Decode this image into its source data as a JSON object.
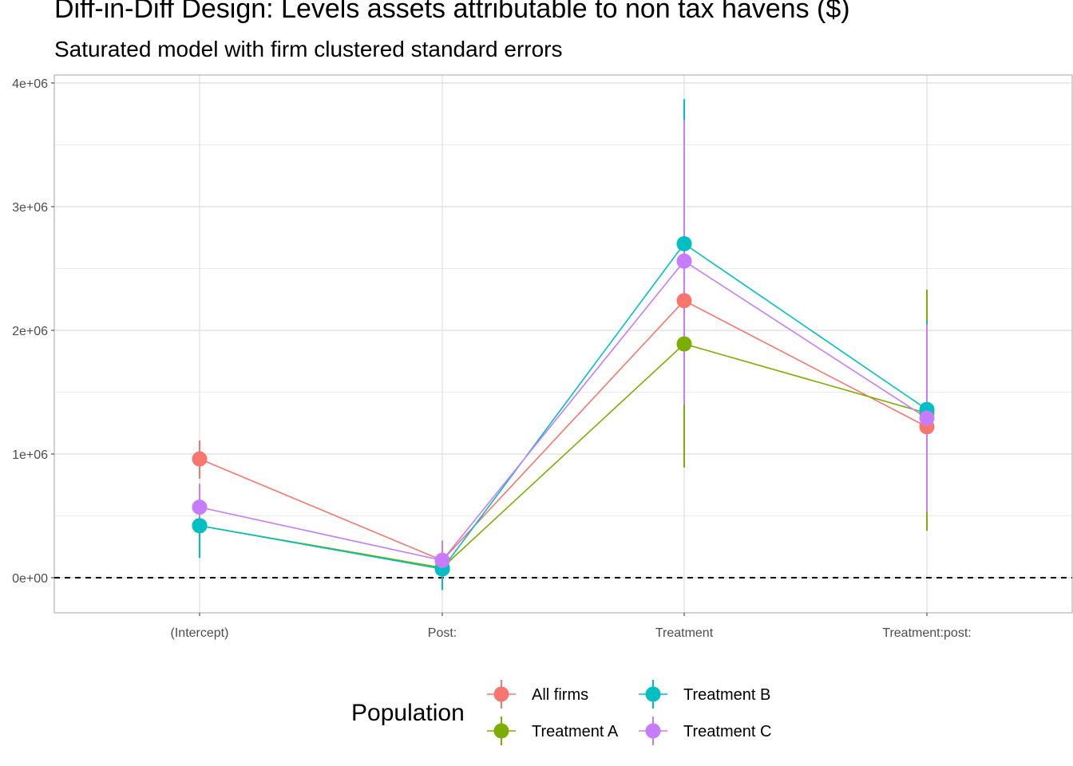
{
  "chart_data": {
    "type": "scatter",
    "title": "Diff-in-Diff Design: Levels assets attributable to non tax havens  ($)",
    "subtitle": "Saturated model with firm clustered standard errors",
    "categories": [
      "(Intercept)",
      "Post:",
      "Treatment",
      "Treatment:post:"
    ],
    "y_ticks": [
      {
        "value": 0,
        "label": "0e+00"
      },
      {
        "value": 1000000,
        "label": "1e+06"
      },
      {
        "value": 2000000,
        "label": "2e+06"
      },
      {
        "value": 3000000,
        "label": "3e+06"
      },
      {
        "value": 4000000,
        "label": "4e+06"
      }
    ],
    "ylim": [
      -280000,
      4000000
    ],
    "reference_line": 0,
    "grid": true,
    "legend": {
      "title": "Population",
      "placement": "bottom"
    },
    "series": [
      {
        "name": "All firms",
        "color": "#F8766D",
        "values": [
          960000,
          140000,
          2240000,
          1220000
        ],
        "lower": [
          800000,
          20000,
          1500000,
          500000
        ],
        "upper": [
          1110000,
          260000,
          2980000,
          1940000
        ]
      },
      {
        "name": "Treatment A",
        "color": "#7CAE00",
        "values": [
          420000,
          80000,
          1890000,
          1330000
        ],
        "lower": [
          160000,
          -100000,
          890000,
          380000
        ],
        "upper": [
          680000,
          260000,
          2890000,
          2330000
        ]
      },
      {
        "name": "Treatment B",
        "color": "#00BFC4",
        "values": [
          420000,
          70000,
          2700000,
          1360000
        ],
        "lower": [
          160000,
          -100000,
          1500000,
          600000
        ],
        "upper": [
          680000,
          260000,
          3870000,
          2080000
        ]
      },
      {
        "name": "Treatment C",
        "color": "#C77CFF",
        "values": [
          570000,
          140000,
          2560000,
          1290000
        ],
        "lower": [
          370000,
          10000,
          1400000,
          530000
        ],
        "upper": [
          760000,
          300000,
          3700000,
          2050000
        ]
      }
    ]
  }
}
